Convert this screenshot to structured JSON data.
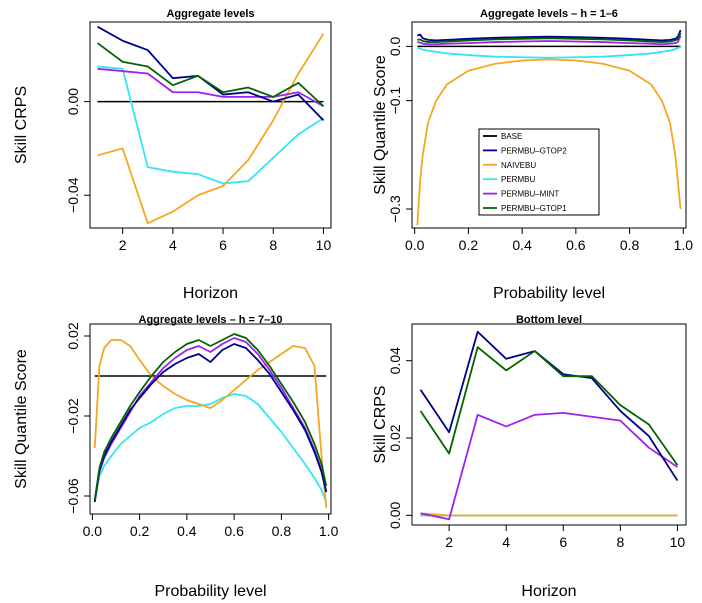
{
  "colors": {
    "BASE": "#000000",
    "PERMBU-GTOP2": "#00008B",
    "NAIVEBU": "#F5A623",
    "PERMBU": "#33E6F0",
    "PERMBU-MINT": "#A020F0",
    "PERMBU-GTOP1": "#006400"
  },
  "chart_data": [
    {
      "type": "line",
      "title": "Aggregate levels",
      "xlabel": "Horizon",
      "ylabel": "Skill CRPS",
      "xlim": [
        0.7,
        10.3
      ],
      "ylim": [
        -0.054,
        0.034
      ],
      "xticks": [
        2,
        4,
        6,
        8,
        10
      ],
      "yticks": [
        -0.04,
        0.0
      ],
      "ytick_labels": [
        "−0.04",
        "0.00"
      ],
      "x": [
        1,
        2,
        3,
        4,
        5,
        6,
        7,
        8,
        9,
        10
      ],
      "hline": 0,
      "series": [
        {
          "name": "PERMBU-GTOP2",
          "values": [
            0.032,
            0.026,
            0.022,
            0.01,
            0.011,
            0.003,
            0.004,
            0.0,
            0.003,
            -0.008
          ]
        },
        {
          "name": "NAIVEBU",
          "values": [
            -0.023,
            -0.02,
            -0.052,
            -0.047,
            -0.04,
            -0.036,
            -0.025,
            -0.008,
            0.012,
            0.029
          ]
        },
        {
          "name": "PERMBU",
          "values": [
            0.015,
            0.014,
            -0.028,
            -0.03,
            -0.031,
            -0.035,
            -0.034,
            -0.024,
            -0.014,
            -0.007
          ]
        },
        {
          "name": "PERMBU-MINT",
          "values": [
            0.014,
            0.013,
            0.012,
            0.004,
            0.004,
            0.002,
            0.002,
            0.002,
            0.004,
            -0.002
          ]
        },
        {
          "name": "PERMBU-GTOP1",
          "values": [
            0.025,
            0.017,
            0.015,
            0.007,
            0.011,
            0.004,
            0.006,
            0.002,
            0.008,
            -0.002
          ]
        }
      ]
    },
    {
      "type": "line",
      "title": "Aggregate levels – h = 1–6",
      "xlabel": "Probability level",
      "ylabel": "Skill Quantile Score",
      "xlim": [
        -0.01,
        1.01
      ],
      "ylim": [
        -0.335,
        0.045
      ],
      "xticks": [
        0.0,
        0.2,
        0.4,
        0.6,
        0.8,
        1.0
      ],
      "xtick_labels": [
        "0.0",
        "0.2",
        "0.4",
        "0.6",
        "0.8",
        "1.0"
      ],
      "yticks": [
        -0.3,
        -0.1,
        0.0
      ],
      "ytick_labels": [
        "−0.3",
        "−0.1",
        "0.0"
      ],
      "x": [
        0.01,
        0.02,
        0.03,
        0.05,
        0.08,
        0.12,
        0.2,
        0.3,
        0.4,
        0.5,
        0.6,
        0.7,
        0.8,
        0.88,
        0.92,
        0.95,
        0.97,
        0.98,
        0.99
      ],
      "hline": 0,
      "legend": {
        "position": "center-bottom",
        "entries": [
          "BASE",
          "PERMBU–GTOP2",
          "NAIVEBU",
          "PERMBU",
          "PERMBU–MINT",
          "PERMBU–GTOP1"
        ]
      },
      "series": [
        {
          "name": "PERMBU-GTOP2",
          "values": [
            0.02,
            0.022,
            0.015,
            0.012,
            0.011,
            0.012,
            0.014,
            0.016,
            0.017,
            0.018,
            0.017,
            0.016,
            0.014,
            0.012,
            0.011,
            0.012,
            0.014,
            0.018,
            0.03
          ]
        },
        {
          "name": "NAIVEBU",
          "values": [
            -0.33,
            -0.25,
            -0.2,
            -0.14,
            -0.1,
            -0.07,
            -0.045,
            -0.032,
            -0.026,
            -0.024,
            -0.026,
            -0.032,
            -0.045,
            -0.07,
            -0.1,
            -0.14,
            -0.2,
            -0.25,
            -0.3
          ]
        },
        {
          "name": "PERMBU",
          "values": [
            -0.003,
            -0.004,
            -0.006,
            -0.008,
            -0.01,
            -0.013,
            -0.016,
            -0.019,
            -0.02,
            -0.021,
            -0.02,
            -0.019,
            -0.016,
            -0.013,
            -0.01,
            -0.008,
            -0.005,
            -0.003,
            -0.001
          ]
        },
        {
          "name": "PERMBU-MINT",
          "values": [
            0.008,
            0.007,
            0.005,
            0.004,
            0.004,
            0.005,
            0.006,
            0.008,
            0.009,
            0.01,
            0.009,
            0.008,
            0.006,
            0.005,
            0.004,
            0.005,
            0.006,
            0.008,
            0.02
          ]
        },
        {
          "name": "PERMBU-GTOP1",
          "values": [
            0.012,
            0.013,
            0.01,
            0.008,
            0.008,
            0.009,
            0.011,
            0.013,
            0.014,
            0.015,
            0.014,
            0.013,
            0.011,
            0.009,
            0.008,
            0.009,
            0.011,
            0.014,
            0.025
          ]
        }
      ]
    },
    {
      "type": "line",
      "title": "Aggregate levels – h = 7–10",
      "xlabel": "Probability level",
      "ylabel": "Skill Quantile Score",
      "xlim": [
        -0.01,
        1.01
      ],
      "ylim": [
        -0.069,
        0.026
      ],
      "xticks": [
        0.0,
        0.2,
        0.4,
        0.6,
        0.8,
        1.0
      ],
      "xtick_labels": [
        "0.0",
        "0.2",
        "0.4",
        "0.6",
        "0.8",
        "1.0"
      ],
      "yticks": [
        -0.06,
        -0.02,
        0.02
      ],
      "ytick_labels": [
        "−0.06",
        "−0.02",
        "0.02"
      ],
      "x": [
        0.01,
        0.03,
        0.05,
        0.08,
        0.12,
        0.16,
        0.2,
        0.25,
        0.3,
        0.35,
        0.4,
        0.45,
        0.5,
        0.55,
        0.6,
        0.65,
        0.7,
        0.75,
        0.8,
        0.85,
        0.9,
        0.94,
        0.97,
        0.99
      ],
      "hline": 0,
      "series": [
        {
          "name": "PERMBU-GTOP2",
          "values": [
            -0.063,
            -0.047,
            -0.04,
            -0.033,
            -0.025,
            -0.017,
            -0.011,
            -0.004,
            0.002,
            0.006,
            0.009,
            0.011,
            0.007,
            0.013,
            0.016,
            0.014,
            0.008,
            0.001,
            -0.008,
            -0.017,
            -0.027,
            -0.038,
            -0.048,
            -0.058
          ]
        },
        {
          "name": "NAIVEBU",
          "values": [
            -0.036,
            0.005,
            0.014,
            0.018,
            0.018,
            0.015,
            0.008,
            0.0,
            -0.005,
            -0.009,
            -0.012,
            -0.014,
            -0.016,
            -0.012,
            -0.007,
            -0.002,
            0.003,
            0.007,
            0.011,
            0.015,
            0.014,
            0.005,
            -0.04,
            -0.066
          ]
        },
        {
          "name": "PERMBU",
          "values": [
            -0.062,
            -0.05,
            -0.045,
            -0.04,
            -0.034,
            -0.03,
            -0.026,
            -0.023,
            -0.019,
            -0.016,
            -0.015,
            -0.015,
            -0.014,
            -0.011,
            -0.009,
            -0.01,
            -0.014,
            -0.021,
            -0.028,
            -0.036,
            -0.044,
            -0.051,
            -0.057,
            -0.063
          ]
        },
        {
          "name": "PERMBU-MINT",
          "values": [
            -0.063,
            -0.048,
            -0.041,
            -0.034,
            -0.026,
            -0.018,
            -0.01,
            -0.003,
            0.004,
            0.009,
            0.013,
            0.015,
            0.012,
            0.016,
            0.019,
            0.017,
            0.011,
            0.003,
            -0.006,
            -0.016,
            -0.026,
            -0.037,
            -0.047,
            -0.058
          ]
        },
        {
          "name": "PERMBU-GTOP1",
          "values": [
            -0.062,
            -0.046,
            -0.038,
            -0.031,
            -0.023,
            -0.015,
            -0.008,
            0.0,
            0.007,
            0.012,
            0.016,
            0.018,
            0.015,
            0.018,
            0.021,
            0.019,
            0.013,
            0.005,
            -0.004,
            -0.013,
            -0.023,
            -0.034,
            -0.044,
            -0.055
          ]
        }
      ]
    },
    {
      "type": "line",
      "title": "Bottom level",
      "xlabel": "Horizon",
      "ylabel": "Skill CRPS",
      "xlim": [
        0.7,
        10.3
      ],
      "ylim": [
        -0.0025,
        0.0495
      ],
      "xticks": [
        2,
        4,
        6,
        8,
        10
      ],
      "yticks": [
        0.0,
        0.02,
        0.04
      ],
      "ytick_labels": [
        "0.00",
        "0.02",
        "0.04"
      ],
      "x": [
        1,
        2,
        3,
        4,
        5,
        6,
        7,
        8,
        9,
        10
      ],
      "hline": 0,
      "series": [
        {
          "name": "PERMBU-GTOP2",
          "values": [
            0.0325,
            0.0215,
            0.0475,
            0.0405,
            0.0425,
            0.0365,
            0.0355,
            0.027,
            0.0205,
            0.009
          ]
        },
        {
          "name": "PERMBU-GTOP1",
          "values": [
            0.027,
            0.016,
            0.0435,
            0.0375,
            0.0425,
            0.036,
            0.036,
            0.0285,
            0.0235,
            0.013
          ]
        },
        {
          "name": "PERMBU-MINT",
          "values": [
            0.0005,
            -0.001,
            0.026,
            0.023,
            0.026,
            0.0265,
            0.0255,
            0.0245,
            0.0175,
            0.0125
          ]
        },
        {
          "name": "NAIVEBU",
          "values": [
            0.0005,
            0.0,
            0.0,
            0.0,
            0.0,
            0.0,
            0.0,
            0.0,
            0.0,
            0.0
          ]
        },
        {
          "name": "PERMBU",
          "values": [
            0.0,
            0.0,
            0.0,
            0.0,
            0.0,
            0.0,
            0.0,
            0.0,
            0.0,
            0.0
          ]
        }
      ]
    }
  ]
}
